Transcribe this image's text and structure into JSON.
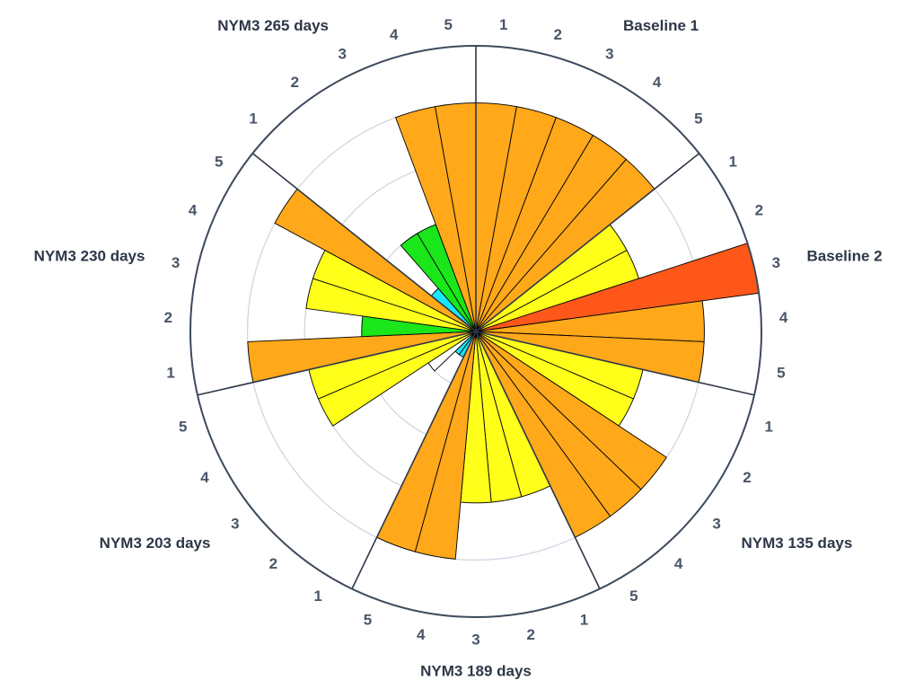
{
  "chart_data": {
    "type": "polar-bar",
    "radial_range": [
      0,
      5
    ],
    "radial_gridlines": [
      1,
      2,
      3,
      4
    ],
    "direction": "clockwise",
    "groups": [
      {
        "label": "Baseline 1",
        "ticks": [
          "1",
          "2",
          "3",
          "4",
          "5"
        ],
        "values": [
          4.0,
          4.0,
          4.0,
          4.0,
          4.0
        ],
        "colors": [
          "#FFA81A",
          "#FFA81A",
          "#FFA81A",
          "#FFA81A",
          "#FFA81A"
        ]
      },
      {
        "label": "Baseline 2",
        "ticks": [
          "1",
          "2",
          "3",
          "4",
          "5"
        ],
        "values": [
          3.0,
          3.0,
          5.0,
          4.0,
          4.0
        ],
        "colors": [
          "#FFFF1A",
          "#FFFF1A",
          "#FF571A",
          "#FFA81A",
          "#FFA81A"
        ]
      },
      {
        "label": "NYM3 135 days",
        "ticks": [
          "1",
          "2",
          "3",
          "4",
          "5"
        ],
        "values": [
          3.0,
          3.0,
          4.0,
          4.0,
          4.0
        ],
        "colors": [
          "#FFFF1A",
          "#FFFF1A",
          "#FFA81A",
          "#FFA81A",
          "#FFA81A"
        ]
      },
      {
        "label": "NYM3 189 days",
        "ticks": [
          "1",
          "2",
          "3",
          "4",
          "5"
        ],
        "values": [
          3.0,
          3.0,
          3.0,
          4.0,
          4.0
        ],
        "colors": [
          "#FFFF1A",
          "#FFFF1A",
          "#FFFF1A",
          "#FFA81A",
          "#FFA81A"
        ]
      },
      {
        "label": "NYM3 203 days",
        "ticks": [
          "1",
          "2",
          "3",
          "4",
          "5"
        ],
        "values": [
          0.5,
          0.5,
          1.0,
          3.0,
          3.0
        ],
        "colors": [
          "#1AE6FF",
          "#1AE6FF",
          "#FFFFFF",
          "#FFFF1A",
          "#FFFF1A"
        ]
      },
      {
        "label": "NYM3 230 days",
        "ticks": [
          "1",
          "2",
          "3",
          "4",
          "5"
        ],
        "values": [
          4.0,
          2.0,
          3.0,
          3.0,
          4.0
        ],
        "colors": [
          "#FFA81A",
          "#1AE61A",
          "#FFFF1A",
          "#FFFF1A",
          "#FFA81A"
        ]
      },
      {
        "label": "NYM3 265 days",
        "ticks": [
          "1",
          "2",
          "3",
          "4",
          "5"
        ],
        "values": [
          1.0,
          2.0,
          2.0,
          4.0,
          4.0
        ],
        "colors": [
          "#1AE6FF",
          "#1AE61A",
          "#1AE61A",
          "#FFA81A",
          "#FFA81A"
        ]
      }
    ],
    "colors": {
      "gridline": "#cbd5e0",
      "axis": "#2d3748",
      "bar_outline": "#000000"
    }
  }
}
